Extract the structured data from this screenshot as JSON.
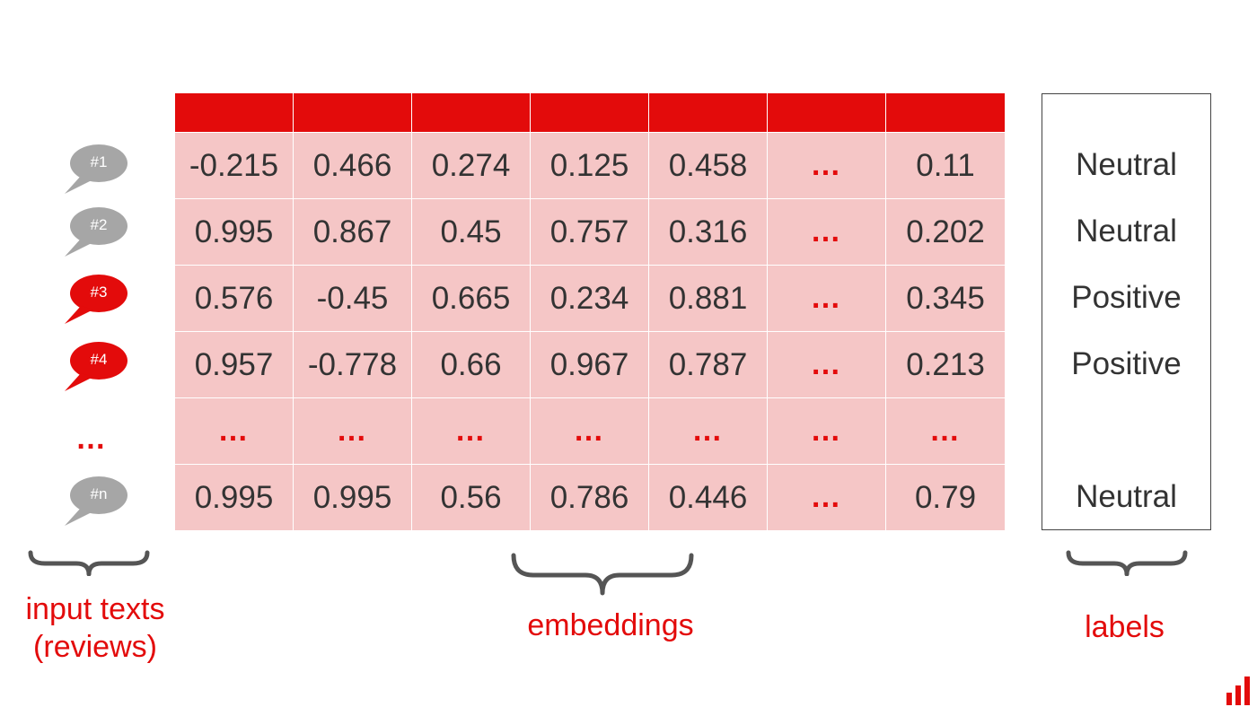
{
  "reviews": [
    {
      "id": "#1",
      "color": "#a6a6a6"
    },
    {
      "id": "#2",
      "color": "#a6a6a6"
    },
    {
      "id": "#3",
      "color": "#e30b0b"
    },
    {
      "id": "#4",
      "color": "#e30b0b"
    },
    {
      "id": "…",
      "color": "#e30b0b"
    },
    {
      "id": "#n",
      "color": "#a6a6a6"
    }
  ],
  "embeddings": [
    [
      "-0.215",
      "0.466",
      "0.274",
      "0.125",
      "0.458",
      "…",
      "0.11"
    ],
    [
      "0.995",
      "0.867",
      "0.45",
      "0.757",
      "0.316",
      "…",
      "0.202"
    ],
    [
      "0.576",
      "-0.45",
      "0.665",
      "0.234",
      "0.881",
      "…",
      "0.345"
    ],
    [
      "0.957",
      "-0.778",
      "0.66",
      "0.967",
      "0.787",
      "…",
      "0.213"
    ],
    [
      "…",
      "…",
      "…",
      "…",
      "…",
      "…",
      "…"
    ],
    [
      "0.995",
      "0.995",
      "0.56",
      "0.786",
      "0.446",
      "…",
      "0.79"
    ]
  ],
  "labels": [
    "",
    "Neutral",
    "Neutral",
    "Positive",
    "Positive",
    "",
    "Neutral"
  ],
  "captions": {
    "input_texts_line1": "input texts",
    "input_texts_line2": "(reviews)",
    "embeddings": "embeddings",
    "labels": "labels"
  },
  "colors": {
    "accent": "#e30b0b",
    "cell_fill": "#f5c6c6",
    "bubble_gray": "#a6a6a6"
  },
  "logo": "bar-chart-logo"
}
